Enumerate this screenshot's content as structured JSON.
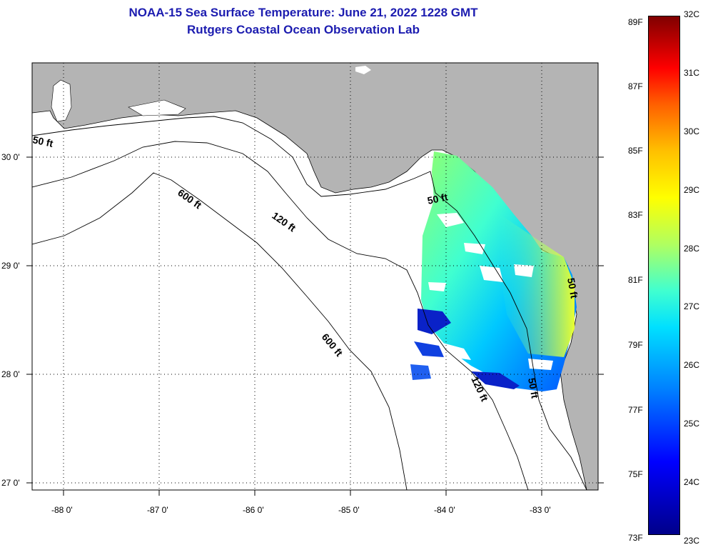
{
  "title": {
    "line1": "NOAA-15 Sea Surface Temperature:  June 21, 2022 1228 GMT",
    "line2": "Rutgers Coastal Ocean Observation Lab"
  },
  "map": {
    "lon_ticks": [
      "-88 0'",
      "-87 0'",
      "-86 0'",
      "-85 0'",
      "-84 0'",
      "-83 0'"
    ],
    "lat_ticks": [
      "30 0'",
      "29 0'",
      "28 0'",
      "27 0'"
    ],
    "depth_labels": [
      "50 ft",
      "600 ft",
      "120 ft",
      "50 ft",
      "600 ft",
      "120 ft",
      "50 ft",
      "50 ft"
    ],
    "colors": {
      "land": "#b4b4b4",
      "sea": "#ffffff"
    }
  },
  "colorbar": {
    "fahrenheit": [
      "89F",
      "87F",
      "85F",
      "83F",
      "81F",
      "79F",
      "77F",
      "75F",
      "73F"
    ],
    "celsius": [
      "32C",
      "31C",
      "30C",
      "29C",
      "28C",
      "27C",
      "26C",
      "25C",
      "24C",
      "23C"
    ]
  }
}
